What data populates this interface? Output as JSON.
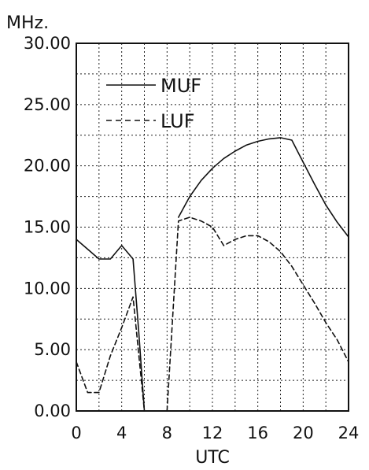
{
  "chart_data": {
    "type": "line",
    "title": "",
    "ylabel": "MHz.",
    "xlabel": "UTC",
    "xlim": [
      0,
      24
    ],
    "ylim": [
      0,
      30
    ],
    "grid": true,
    "legend_position": "top-left",
    "x_ticks": [
      "0",
      "4",
      "8",
      "12",
      "16",
      "20",
      "24"
    ],
    "y_ticks": [
      "0.00",
      "5.00",
      "10.00",
      "15.00",
      "20.00",
      "25.00",
      "30.00"
    ],
    "series": [
      {
        "name": "MUF",
        "style": "solid",
        "color": "#111111",
        "segments": [
          [
            [
              0,
              14.0
            ],
            [
              1,
              13.2
            ],
            [
              2,
              12.4
            ],
            [
              3,
              12.4
            ],
            [
              4,
              13.5
            ],
            [
              5,
              12.4
            ],
            [
              5.5,
              6.5
            ],
            [
              6,
              0.0
            ]
          ],
          [
            [
              9,
              15.8
            ],
            [
              10,
              17.5
            ],
            [
              11,
              18.8
            ],
            [
              12,
              19.8
            ],
            [
              13,
              20.6
            ],
            [
              14,
              21.2
            ],
            [
              15,
              21.7
            ],
            [
              16,
              22.0
            ],
            [
              17,
              22.2
            ],
            [
              18,
              22.3
            ],
            [
              19,
              22.1
            ],
            [
              20,
              20.3
            ],
            [
              21,
              18.5
            ],
            [
              22,
              16.8
            ],
            [
              23,
              15.4
            ],
            [
              24,
              14.2
            ]
          ]
        ]
      },
      {
        "name": "LUF",
        "style": "dashed",
        "color": "#111111",
        "segments": [
          [
            [
              0,
              4.0
            ],
            [
              1,
              1.5
            ],
            [
              2,
              1.5
            ],
            [
              3,
              4.5
            ],
            [
              4,
              6.8
            ],
            [
              5,
              9.3
            ],
            [
              6,
              0.0
            ]
          ],
          [
            [
              8,
              0.0
            ],
            [
              9,
              15.5
            ],
            [
              10,
              15.8
            ],
            [
              11,
              15.5
            ],
            [
              12,
              15.0
            ],
            [
              13,
              13.5
            ],
            [
              14,
              14.0
            ],
            [
              15,
              14.3
            ],
            [
              16,
              14.3
            ],
            [
              17,
              13.8
            ],
            [
              18,
              13.0
            ],
            [
              19,
              11.8
            ],
            [
              20,
              10.3
            ],
            [
              21,
              8.8
            ],
            [
              22,
              7.2
            ],
            [
              23,
              5.8
            ],
            [
              24,
              4.0
            ]
          ]
        ]
      }
    ]
  }
}
